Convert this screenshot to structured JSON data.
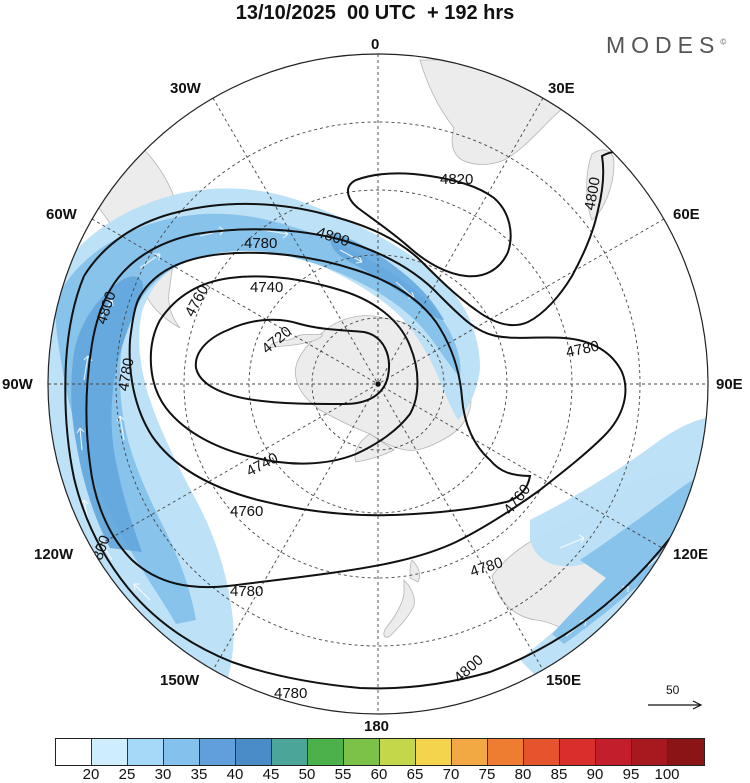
{
  "header": {
    "title": "13/10/2025  00 UTC  + 192 hrs",
    "brand": "MODES",
    "brand_mark": "©"
  },
  "map": {
    "projection": "south-polar-stereographic",
    "longitude_labels": [
      "0",
      "30E",
      "60E",
      "90E",
      "120E",
      "150E",
      "180",
      "150W",
      "120W",
      "90W",
      "60W",
      "30W"
    ],
    "contour_labels": [
      "4820",
      "4800",
      "4800",
      "4780",
      "4800",
      "4780",
      "4760",
      "4740",
      "4720",
      "4780",
      "4800",
      "4780",
      "4760",
      "4740",
      "4760",
      "4780",
      "4780",
      "4800"
    ],
    "reference_vector": "50",
    "colors": {
      "contour": "#111111",
      "land": "#ececec",
      "grid": "#444444",
      "wind_light": "#b9dff6",
      "wind_mid": "#88c3ec",
      "wind_strong": "#5aa4dc"
    }
  },
  "colorbar": {
    "ticks": [
      "20",
      "25",
      "30",
      "35",
      "40",
      "45",
      "50",
      "55",
      "60",
      "65",
      "70",
      "75",
      "80",
      "85",
      "90",
      "95",
      "100"
    ],
    "colors": [
      "#ffffff",
      "#cfeefd",
      "#a6d9f7",
      "#84c1ec",
      "#609fd9",
      "#4a8cc6",
      "#4ba598",
      "#4cb14a",
      "#7dc248",
      "#c4d74b",
      "#f4d44d",
      "#f2a843",
      "#ee7d31",
      "#e5542c",
      "#d82f2c",
      "#c21e2b",
      "#a8181f",
      "#8b1416"
    ]
  }
}
